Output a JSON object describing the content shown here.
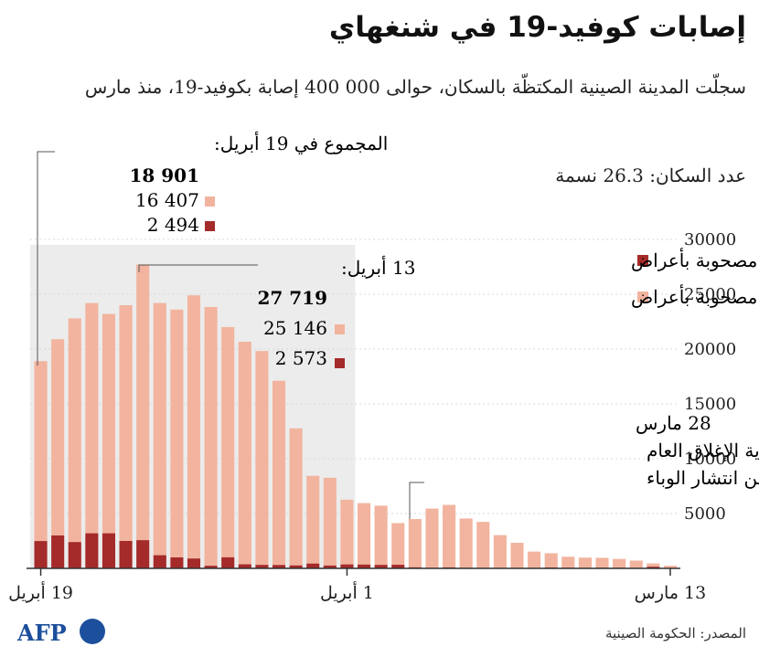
{
  "title": "إصابات كوفيد-19 في شنغهاي",
  "subtitle": "سجلّت المدينة الصينية المكتظّة بالسكان، حوالى 000 400 إصابة بكوفيد-19، منذ مارس",
  "population": "عدد السكان: 26.3 نسمة",
  "source": "المصدر: الحكومة الصينية",
  "logo_text": "AFP",
  "colors": {
    "symptomatic": "#a52a2a",
    "asymptomatic": "#f2b49f",
    "shade": "#ececec",
    "bar_text": "#1a1a1a"
  },
  "annotations": {
    "total_apr19": {
      "title": "المجموع في 19 أبريل:",
      "total": "18 901",
      "asym": "16 407",
      "sym": "2 494"
    },
    "apr13": {
      "title": "13 أبريل:",
      "total": "27 719",
      "asym": "25 146",
      "sym": "2 573"
    },
    "lockdown": {
      "line1": "28 مارس",
      "line2": "بداية الإغلاق العام",
      "line3": "للحّد من انتشار الوباء"
    }
  },
  "chart_data": {
    "type": "bar",
    "stacked": true,
    "x_axis_direction": "right-to-left",
    "x_tick_labels": [
      "19 أبريل",
      "1 أبريل",
      "13 مارس"
    ],
    "y_ticks": [
      5000,
      10000,
      15000,
      20000,
      25000,
      30000
    ],
    "ylim": [
      0,
      30000
    ],
    "legend": [
      {
        "name": "مصحوبة بأعراض",
        "color": "#a52a2a"
      },
      {
        "name": "غير مصحوبة بأعراض",
        "color": "#f2b49f"
      }
    ],
    "dates": [
      "2022-03-13",
      "2022-03-14",
      "2022-03-15",
      "2022-03-16",
      "2022-03-17",
      "2022-03-18",
      "2022-03-19",
      "2022-03-20",
      "2022-03-21",
      "2022-03-22",
      "2022-03-23",
      "2022-03-24",
      "2022-03-25",
      "2022-03-26",
      "2022-03-27",
      "2022-03-28",
      "2022-03-29",
      "2022-03-30",
      "2022-03-31",
      "2022-04-01",
      "2022-04-02",
      "2022-04-03",
      "2022-04-04",
      "2022-04-05",
      "2022-04-06",
      "2022-04-07",
      "2022-04-08",
      "2022-04-09",
      "2022-04-10",
      "2022-04-11",
      "2022-04-12",
      "2022-04-13",
      "2022-04-14",
      "2022-04-15",
      "2022-04-16",
      "2022-04-17",
      "2022-04-18",
      "2022-04-19"
    ],
    "series": [
      {
        "name": "مصحوبة بأعراض",
        "values": [
          40,
          150,
          10,
          60,
          60,
          30,
          60,
          80,
          30,
          30,
          30,
          40,
          50,
          90,
          50,
          100,
          330,
          320,
          350,
          360,
          260,
          440,
          270,
          310,
          320,
          370,
          1010,
          240,
          900,
          1000,
          1200,
          2573,
          2500,
          3200,
          3200,
          2400,
          3000,
          2494
        ]
      },
      {
        "name": "غير مصحوبة بأعراض",
        "values": [
          200,
          300,
          700,
          800,
          900,
          950,
          1000,
          1300,
          1500,
          2300,
          3000,
          4200,
          4500,
          5700,
          5400,
          4400,
          3800,
          5400,
          5600,
          5900,
          8000,
          8000,
          12500,
          16800,
          19500,
          20300,
          21000,
          23600,
          24000,
          22600,
          23000,
          25146,
          21500,
          20000,
          21000,
          20400,
          17900,
          16407
        ]
      }
    ]
  }
}
